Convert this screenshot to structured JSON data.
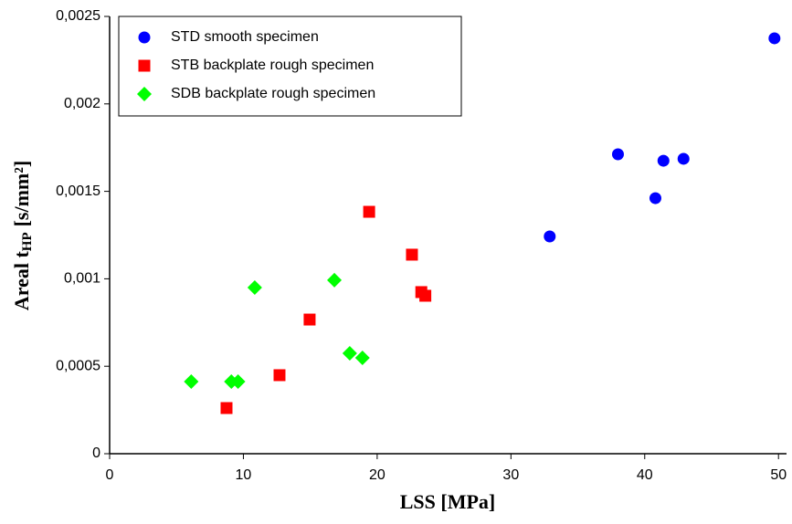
{
  "chart_data": {
    "type": "scatter",
    "x_label": "LSS [MPa]",
    "y_label": {
      "main": "Areal t",
      "sub": "HP",
      "unit": "[s/mm²]"
    },
    "xlim": [
      0,
      50.6
    ],
    "xticks": [
      0,
      10,
      20,
      30,
      40,
      50
    ],
    "ylim": [
      0,
      0.0025
    ],
    "yticks": [
      0,
      {
        "value": 0.0005,
        "label": "0,0005"
      },
      {
        "value": 0.001,
        "label": "0,001"
      },
      {
        "value": 0.0015,
        "label": "0,0015"
      },
      {
        "value": 0.002,
        "label": "0,002"
      },
      {
        "value": 0.0025,
        "label": "0,0025"
      }
    ],
    "legend": "upper left",
    "series": [
      {
        "name": "STD smooth specimen",
        "color": "#0000ff",
        "marker": "circle",
        "x": [
          32.9,
          38.0,
          40.8,
          41.4,
          42.9,
          49.7
        ],
        "values": [
          0.001242,
          0.001712,
          0.001461,
          0.001675,
          0.001686,
          0.002375
        ]
      },
      {
        "name": "STB backplate rough specimen",
        "color": "#ff0000",
        "marker": "square",
        "x": [
          8.74,
          12.7,
          14.95,
          19.4,
          22.6,
          23.3,
          23.6
        ],
        "values": [
          0.000261,
          0.000449,
          0.000767,
          0.001383,
          0.001138,
          0.000924,
          0.000903
        ]
      },
      {
        "name": "SDB backplate rough specimen",
        "color": "#00ff00",
        "marker": "diamond",
        "x": [
          6.1,
          9.1,
          9.6,
          10.85,
          16.8,
          17.95,
          18.9
        ],
        "values": [
          0.000412,
          0.000412,
          0.000412,
          0.00095,
          0.000992,
          0.000574,
          0.000548
        ]
      }
    ]
  }
}
